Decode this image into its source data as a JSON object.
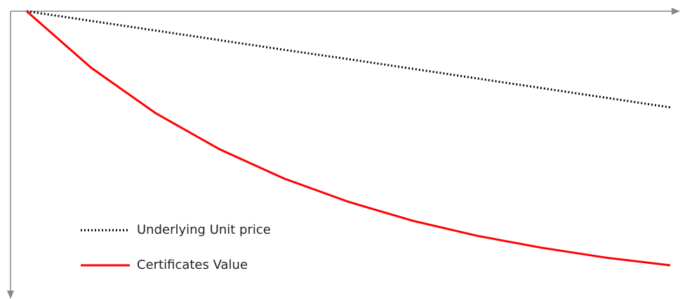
{
  "chart_data": {
    "type": "line",
    "x": [
      0,
      10,
      20,
      30,
      40,
      50,
      60,
      70,
      80,
      90,
      100
    ],
    "series": [
      {
        "name": "Underlying Unit price",
        "color": "#000000",
        "dash": "dotted",
        "values": [
          100,
          96.6,
          93.2,
          89.8,
          86.4,
          83.1,
          79.7,
          76.3,
          72.9,
          69.5,
          66.1
        ]
      },
      {
        "name": "Certificates Value",
        "color": "#ff0000",
        "dash": "solid",
        "values": [
          100,
          80.1,
          64.1,
          51.3,
          41.0,
          32.8,
          26.1,
          20.8,
          16.6,
          13.1,
          10.4
        ]
      }
    ],
    "xlim": [
      0,
      100
    ],
    "ylim": [
      0,
      100
    ],
    "grid": false,
    "legend": "bottom-left"
  }
}
